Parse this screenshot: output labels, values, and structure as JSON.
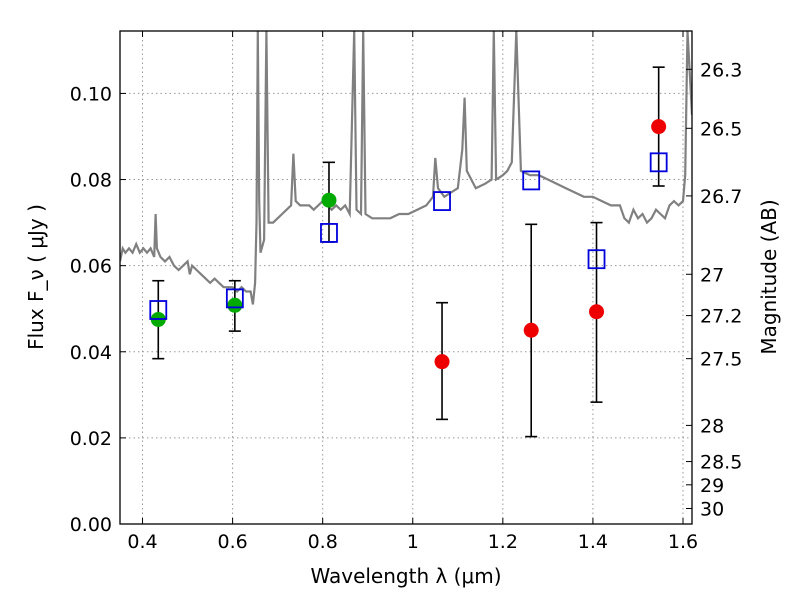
{
  "chart_data": {
    "type": "scatter",
    "xlabel": "Wavelength  λ (μm)",
    "ylabel": "Flux  F_ν  ( μJy )",
    "y2label": "Magnitude (AB)",
    "xlim": [
      0.35,
      1.62
    ],
    "ylim": [
      0.0,
      0.1145
    ],
    "grid": true,
    "x_ticks": [
      {
        "value": 0.4,
        "label": "0.4"
      },
      {
        "value": 0.6,
        "label": "0.6"
      },
      {
        "value": 0.8,
        "label": "0.8"
      },
      {
        "value": 1.0,
        "label": "1"
      },
      {
        "value": 1.2,
        "label": "1.2"
      },
      {
        "value": 1.4,
        "label": "1.4"
      },
      {
        "value": 1.6,
        "label": "1.6"
      }
    ],
    "y_ticks": [
      {
        "value": 0.0,
        "label": "0.00"
      },
      {
        "value": 0.02,
        "label": "0.02"
      },
      {
        "value": 0.04,
        "label": "0.04"
      },
      {
        "value": 0.06,
        "label": "0.06"
      },
      {
        "value": 0.08,
        "label": "0.08"
      },
      {
        "value": 0.1,
        "label": "0.10"
      }
    ],
    "y2_ticks": [
      {
        "flux": 0.1056,
        "label": "26.3"
      },
      {
        "flux": 0.0919,
        "label": "26.5"
      },
      {
        "flux": 0.0762,
        "label": "26.7"
      },
      {
        "flux": 0.058,
        "label": "27"
      },
      {
        "flux": 0.0484,
        "label": "27.2"
      },
      {
        "flux": 0.0384,
        "label": "27.5"
      },
      {
        "flux": 0.0229,
        "label": "28"
      },
      {
        "flux": 0.0145,
        "label": "28.5"
      },
      {
        "flux": 0.0091,
        "label": "29"
      },
      {
        "flux": 0.0036,
        "label": "30"
      }
    ],
    "colors": {
      "spectrum": "#808080",
      "green_points": "#00aa00",
      "red_points": "#ee0000",
      "model_squares": "#0000dd",
      "error_bars": "#000000",
      "grid": "#999999"
    },
    "spectrum": [
      [
        0.35,
        0.061
      ],
      [
        0.356,
        0.064
      ],
      [
        0.362,
        0.063
      ],
      [
        0.37,
        0.064
      ],
      [
        0.378,
        0.063
      ],
      [
        0.386,
        0.065
      ],
      [
        0.394,
        0.063
      ],
      [
        0.402,
        0.064
      ],
      [
        0.41,
        0.063
      ],
      [
        0.418,
        0.064
      ],
      [
        0.426,
        0.062
      ],
      [
        0.429,
        0.072
      ],
      [
        0.432,
        0.064
      ],
      [
        0.44,
        0.062
      ],
      [
        0.45,
        0.061
      ],
      [
        0.46,
        0.062
      ],
      [
        0.47,
        0.06
      ],
      [
        0.48,
        0.059
      ],
      [
        0.49,
        0.06
      ],
      [
        0.5,
        0.061
      ],
      [
        0.505,
        0.058
      ],
      [
        0.51,
        0.06
      ],
      [
        0.52,
        0.059
      ],
      [
        0.53,
        0.058
      ],
      [
        0.54,
        0.057
      ],
      [
        0.55,
        0.056
      ],
      [
        0.56,
        0.057
      ],
      [
        0.57,
        0.056
      ],
      [
        0.58,
        0.055
      ],
      [
        0.59,
        0.055
      ],
      [
        0.6,
        0.055
      ],
      [
        0.61,
        0.054
      ],
      [
        0.62,
        0.055
      ],
      [
        0.63,
        0.054
      ],
      [
        0.64,
        0.054
      ],
      [
        0.645,
        0.051
      ],
      [
        0.65,
        0.056
      ],
      [
        0.653,
        0.07
      ],
      [
        0.656,
        0.1145
      ],
      [
        0.659,
        0.075
      ],
      [
        0.662,
        0.063
      ],
      [
        0.67,
        0.066
      ],
      [
        0.675,
        0.1145
      ],
      [
        0.68,
        0.07
      ],
      [
        0.69,
        0.07
      ],
      [
        0.7,
        0.071
      ],
      [
        0.71,
        0.072
      ],
      [
        0.72,
        0.073
      ],
      [
        0.73,
        0.074
      ],
      [
        0.735,
        0.086
      ],
      [
        0.74,
        0.075
      ],
      [
        0.75,
        0.074
      ],
      [
        0.76,
        0.074
      ],
      [
        0.77,
        0.074
      ],
      [
        0.78,
        0.073
      ],
      [
        0.79,
        0.074
      ],
      [
        0.8,
        0.075
      ],
      [
        0.81,
        0.074
      ],
      [
        0.82,
        0.073
      ],
      [
        0.83,
        0.074
      ],
      [
        0.84,
        0.073
      ],
      [
        0.85,
        0.074
      ],
      [
        0.86,
        0.072
      ],
      [
        0.87,
        0.1145
      ],
      [
        0.875,
        0.073
      ],
      [
        0.885,
        0.072
      ],
      [
        0.89,
        0.1145
      ],
      [
        0.895,
        0.072
      ],
      [
        0.91,
        0.071
      ],
      [
        0.93,
        0.071
      ],
      [
        0.95,
        0.071
      ],
      [
        0.97,
        0.072
      ],
      [
        0.99,
        0.072
      ],
      [
        1.01,
        0.073
      ],
      [
        1.03,
        0.074
      ],
      [
        1.045,
        0.076
      ],
      [
        1.05,
        0.085
      ],
      [
        1.056,
        0.078
      ],
      [
        1.07,
        0.076
      ],
      [
        1.085,
        0.077
      ],
      [
        1.1,
        0.078
      ],
      [
        1.11,
        0.087
      ],
      [
        1.115,
        0.099
      ],
      [
        1.12,
        0.082
      ],
      [
        1.14,
        0.078
      ],
      [
        1.16,
        0.079
      ],
      [
        1.175,
        0.08
      ],
      [
        1.18,
        0.1145
      ],
      [
        1.185,
        0.08
      ],
      [
        1.2,
        0.081
      ],
      [
        1.21,
        0.082
      ],
      [
        1.22,
        0.084
      ],
      [
        1.23,
        0.1145
      ],
      [
        1.24,
        0.082
      ],
      [
        1.26,
        0.081
      ],
      [
        1.28,
        0.081
      ],
      [
        1.3,
        0.08
      ],
      [
        1.32,
        0.079
      ],
      [
        1.34,
        0.078
      ],
      [
        1.36,
        0.077
      ],
      [
        1.38,
        0.076
      ],
      [
        1.4,
        0.076
      ],
      [
        1.42,
        0.075
      ],
      [
        1.44,
        0.074
      ],
      [
        1.46,
        0.074
      ],
      [
        1.47,
        0.071
      ],
      [
        1.48,
        0.07
      ],
      [
        1.49,
        0.073
      ],
      [
        1.5,
        0.071
      ],
      [
        1.51,
        0.072
      ],
      [
        1.52,
        0.07
      ],
      [
        1.53,
        0.071
      ],
      [
        1.54,
        0.073
      ],
      [
        1.55,
        0.072
      ],
      [
        1.56,
        0.071
      ],
      [
        1.57,
        0.074
      ],
      [
        1.58,
        0.075
      ],
      [
        1.59,
        0.074
      ],
      [
        1.6,
        0.075
      ],
      [
        1.605,
        0.081
      ],
      [
        1.61,
        0.1145
      ],
      [
        1.62,
        0.095
      ]
    ],
    "observed_points": [
      {
        "x": 0.435,
        "y": 0.0475,
        "err_low": 0.0384,
        "err_high": 0.0565,
        "color": "green"
      },
      {
        "x": 0.605,
        "y": 0.0508,
        "err_low": 0.0448,
        "err_high": 0.0565,
        "color": "green"
      },
      {
        "x": 0.814,
        "y": 0.0752,
        "err_low": 0.0655,
        "err_high": 0.084,
        "color": "green"
      },
      {
        "x": 1.065,
        "y": 0.0377,
        "err_low": 0.0243,
        "err_high": 0.0514,
        "color": "red"
      },
      {
        "x": 1.263,
        "y": 0.045,
        "err_low": 0.0203,
        "err_high": 0.0696,
        "color": "red"
      },
      {
        "x": 1.408,
        "y": 0.0493,
        "err_low": 0.0283,
        "err_high": 0.07,
        "color": "red"
      },
      {
        "x": 1.546,
        "y": 0.0923,
        "err_low": 0.0785,
        "err_high": 0.1061,
        "color": "red"
      }
    ],
    "model_points": [
      {
        "x": 0.435,
        "y": 0.0497
      },
      {
        "x": 0.605,
        "y": 0.0524
      },
      {
        "x": 0.814,
        "y": 0.0676
      },
      {
        "x": 1.065,
        "y": 0.075
      },
      {
        "x": 1.263,
        "y": 0.0798
      },
      {
        "x": 1.408,
        "y": 0.0615
      },
      {
        "x": 1.546,
        "y": 0.084
      }
    ]
  }
}
